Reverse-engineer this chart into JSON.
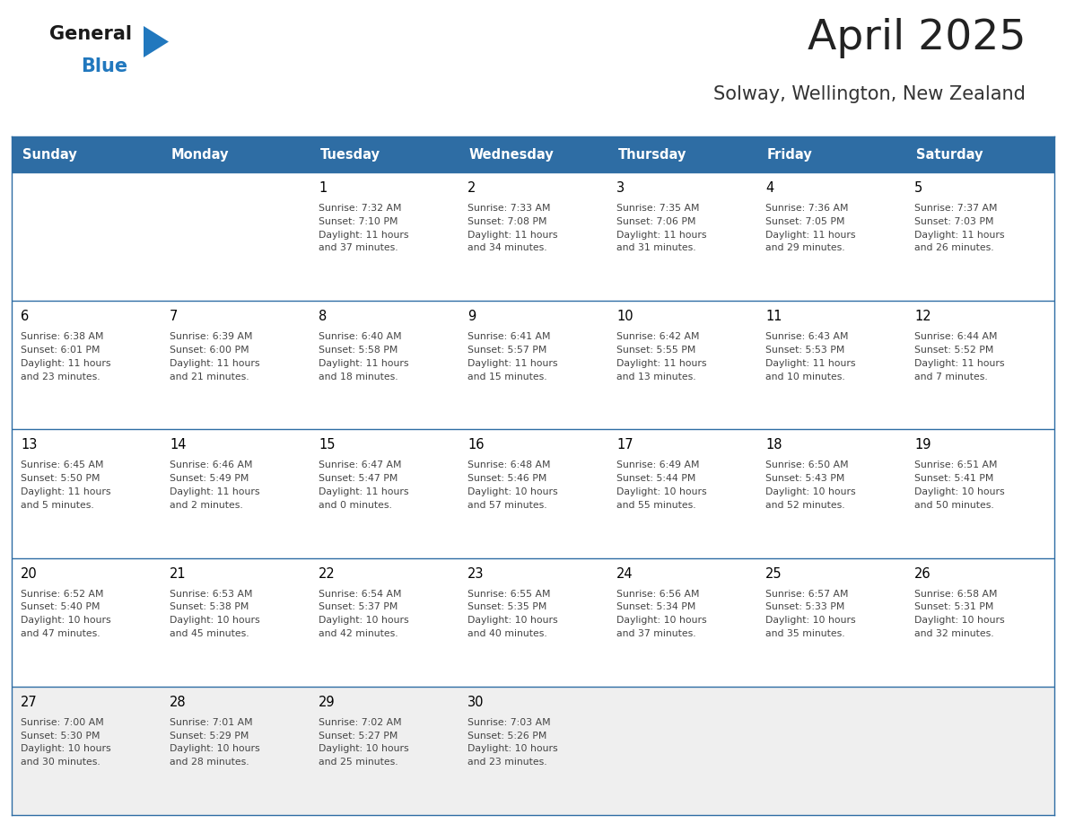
{
  "title": "April 2025",
  "subtitle": "Solway, Wellington, New Zealand",
  "header_bg": "#2E6DA4",
  "header_text_color": "#FFFFFF",
  "days_of_week": [
    "Sunday",
    "Monday",
    "Tuesday",
    "Wednesday",
    "Thursday",
    "Friday",
    "Saturday"
  ],
  "row_bg": "#EFEFEF",
  "cell_bg": "#FFFFFF",
  "cell_border_color": "#2E6DA4",
  "day_number_color": "#000000",
  "content_color": "#444444",
  "title_color": "#222222",
  "subtitle_color": "#333333",
  "logo_general_color": "#1a1a1a",
  "logo_blue_color": "#2178BE",
  "calendar_data": [
    [
      {
        "day": "",
        "text": ""
      },
      {
        "day": "",
        "text": ""
      },
      {
        "day": "1",
        "text": "Sunrise: 7:32 AM\nSunset: 7:10 PM\nDaylight: 11 hours\nand 37 minutes."
      },
      {
        "day": "2",
        "text": "Sunrise: 7:33 AM\nSunset: 7:08 PM\nDaylight: 11 hours\nand 34 minutes."
      },
      {
        "day": "3",
        "text": "Sunrise: 7:35 AM\nSunset: 7:06 PM\nDaylight: 11 hours\nand 31 minutes."
      },
      {
        "day": "4",
        "text": "Sunrise: 7:36 AM\nSunset: 7:05 PM\nDaylight: 11 hours\nand 29 minutes."
      },
      {
        "day": "5",
        "text": "Sunrise: 7:37 AM\nSunset: 7:03 PM\nDaylight: 11 hours\nand 26 minutes."
      }
    ],
    [
      {
        "day": "6",
        "text": "Sunrise: 6:38 AM\nSunset: 6:01 PM\nDaylight: 11 hours\nand 23 minutes."
      },
      {
        "day": "7",
        "text": "Sunrise: 6:39 AM\nSunset: 6:00 PM\nDaylight: 11 hours\nand 21 minutes."
      },
      {
        "day": "8",
        "text": "Sunrise: 6:40 AM\nSunset: 5:58 PM\nDaylight: 11 hours\nand 18 minutes."
      },
      {
        "day": "9",
        "text": "Sunrise: 6:41 AM\nSunset: 5:57 PM\nDaylight: 11 hours\nand 15 minutes."
      },
      {
        "day": "10",
        "text": "Sunrise: 6:42 AM\nSunset: 5:55 PM\nDaylight: 11 hours\nand 13 minutes."
      },
      {
        "day": "11",
        "text": "Sunrise: 6:43 AM\nSunset: 5:53 PM\nDaylight: 11 hours\nand 10 minutes."
      },
      {
        "day": "12",
        "text": "Sunrise: 6:44 AM\nSunset: 5:52 PM\nDaylight: 11 hours\nand 7 minutes."
      }
    ],
    [
      {
        "day": "13",
        "text": "Sunrise: 6:45 AM\nSunset: 5:50 PM\nDaylight: 11 hours\nand 5 minutes."
      },
      {
        "day": "14",
        "text": "Sunrise: 6:46 AM\nSunset: 5:49 PM\nDaylight: 11 hours\nand 2 minutes."
      },
      {
        "day": "15",
        "text": "Sunrise: 6:47 AM\nSunset: 5:47 PM\nDaylight: 11 hours\nand 0 minutes."
      },
      {
        "day": "16",
        "text": "Sunrise: 6:48 AM\nSunset: 5:46 PM\nDaylight: 10 hours\nand 57 minutes."
      },
      {
        "day": "17",
        "text": "Sunrise: 6:49 AM\nSunset: 5:44 PM\nDaylight: 10 hours\nand 55 minutes."
      },
      {
        "day": "18",
        "text": "Sunrise: 6:50 AM\nSunset: 5:43 PM\nDaylight: 10 hours\nand 52 minutes."
      },
      {
        "day": "19",
        "text": "Sunrise: 6:51 AM\nSunset: 5:41 PM\nDaylight: 10 hours\nand 50 minutes."
      }
    ],
    [
      {
        "day": "20",
        "text": "Sunrise: 6:52 AM\nSunset: 5:40 PM\nDaylight: 10 hours\nand 47 minutes."
      },
      {
        "day": "21",
        "text": "Sunrise: 6:53 AM\nSunset: 5:38 PM\nDaylight: 10 hours\nand 45 minutes."
      },
      {
        "day": "22",
        "text": "Sunrise: 6:54 AM\nSunset: 5:37 PM\nDaylight: 10 hours\nand 42 minutes."
      },
      {
        "day": "23",
        "text": "Sunrise: 6:55 AM\nSunset: 5:35 PM\nDaylight: 10 hours\nand 40 minutes."
      },
      {
        "day": "24",
        "text": "Sunrise: 6:56 AM\nSunset: 5:34 PM\nDaylight: 10 hours\nand 37 minutes."
      },
      {
        "day": "25",
        "text": "Sunrise: 6:57 AM\nSunset: 5:33 PM\nDaylight: 10 hours\nand 35 minutes."
      },
      {
        "day": "26",
        "text": "Sunrise: 6:58 AM\nSunset: 5:31 PM\nDaylight: 10 hours\nand 32 minutes."
      }
    ],
    [
      {
        "day": "27",
        "text": "Sunrise: 7:00 AM\nSunset: 5:30 PM\nDaylight: 10 hours\nand 30 minutes."
      },
      {
        "day": "28",
        "text": "Sunrise: 7:01 AM\nSunset: 5:29 PM\nDaylight: 10 hours\nand 28 minutes."
      },
      {
        "day": "29",
        "text": "Sunrise: 7:02 AM\nSunset: 5:27 PM\nDaylight: 10 hours\nand 25 minutes."
      },
      {
        "day": "30",
        "text": "Sunrise: 7:03 AM\nSunset: 5:26 PM\nDaylight: 10 hours\nand 23 minutes."
      },
      {
        "day": "",
        "text": ""
      },
      {
        "day": "",
        "text": ""
      },
      {
        "day": "",
        "text": ""
      }
    ]
  ]
}
